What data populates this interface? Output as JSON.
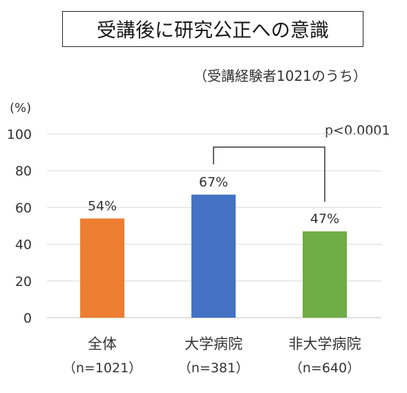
{
  "chart_data": {
    "type": "bar",
    "title": "受講後に研究公正への意識",
    "subtitle": "（受講経験者1021のうち）",
    "ylabel": "(%)",
    "ylim": [
      0,
      100
    ],
    "yticks": [
      0,
      20,
      40,
      60,
      80,
      100
    ],
    "grid": true,
    "categories": [
      "全体",
      "大学病院",
      "非大学病院"
    ],
    "category_counts": [
      "（n=1021）",
      "（n=381）",
      "（n=640）"
    ],
    "values": [
      54,
      67,
      47
    ],
    "value_labels": [
      "54%",
      "67%",
      "47%"
    ],
    "colors": [
      "#ed7d31",
      "#4472c4",
      "#70ad47"
    ],
    "annotation": {
      "text": "p<0.0001",
      "between": [
        "大学病院",
        "非大学病院"
      ]
    }
  }
}
